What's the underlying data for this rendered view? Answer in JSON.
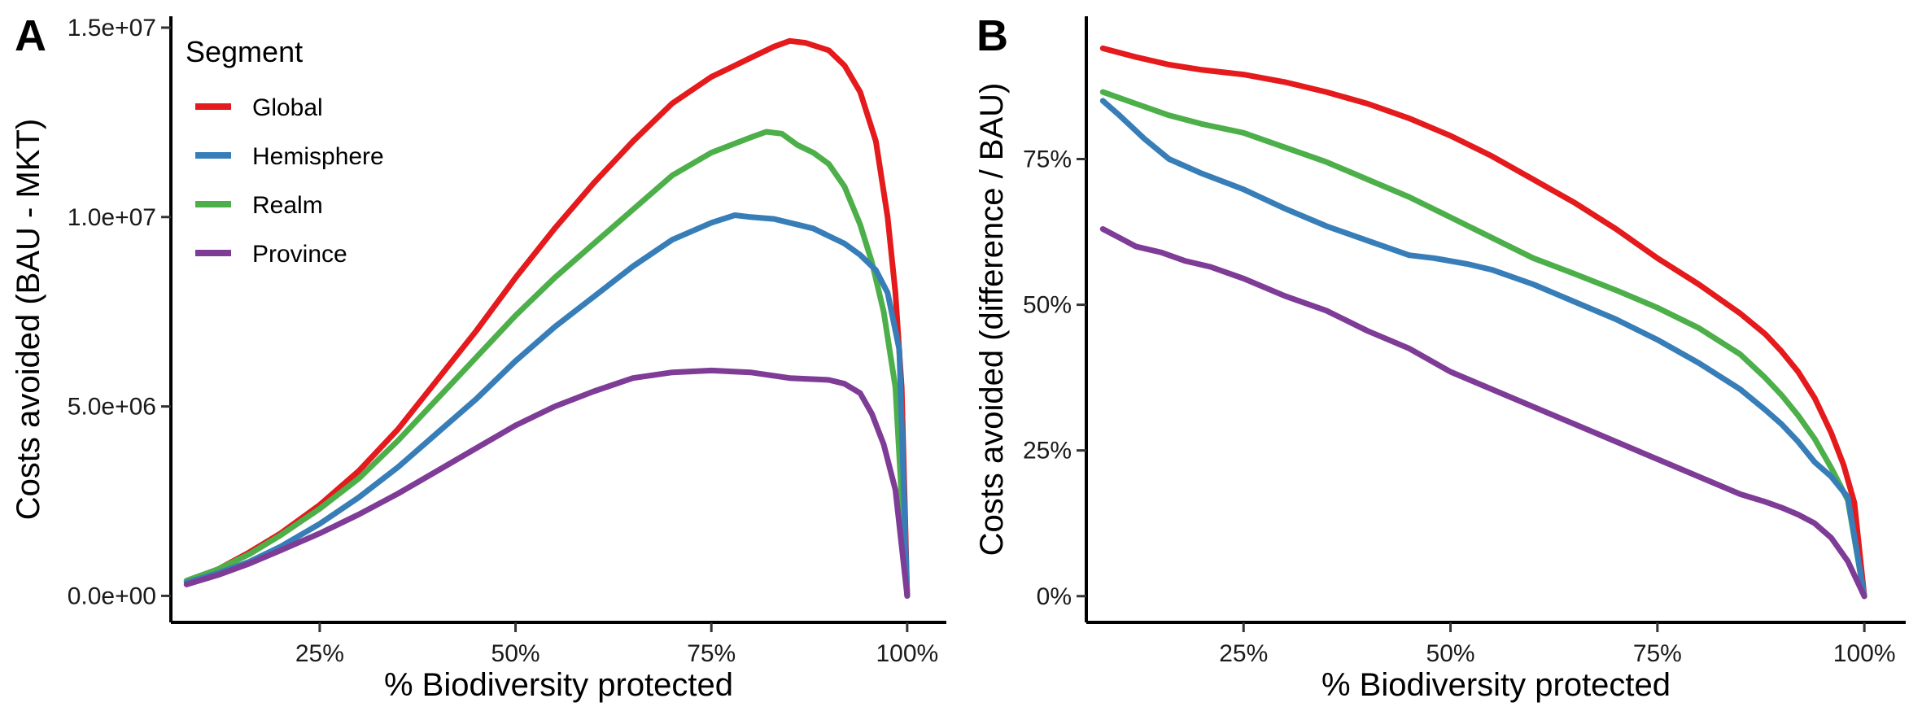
{
  "colors": {
    "Global": "#E41A1C",
    "Hemisphere": "#377EB8",
    "Realm": "#4DAF4A",
    "Province": "#7E3C97"
  },
  "legend": {
    "title": "Segment",
    "entries": [
      "Global",
      "Hemisphere",
      "Realm",
      "Province"
    ]
  },
  "chart_data": [
    {
      "type": "line",
      "panel_tag": "A",
      "xlabel": "% Biodiversity protected",
      "ylabel": "Costs avoided (BAU - MKT)",
      "xlim": [
        6,
        105
      ],
      "ylim": [
        -700000,
        15300000
      ],
      "xticks": [
        25,
        50,
        75,
        100
      ],
      "xtick_labels": [
        "25%",
        "50%",
        "75%",
        "100%"
      ],
      "yticks": [
        0,
        5000000,
        10000000,
        15000000
      ],
      "ytick_labels": [
        "0.0e+00",
        "5.0e+06",
        "1.0e+07",
        "1.5e+07"
      ],
      "grid": false,
      "legend_position": "top-left",
      "series": [
        {
          "name": "Global",
          "points": [
            [
              8,
              400000
            ],
            [
              12,
              700000
            ],
            [
              16,
              1150000
            ],
            [
              20,
              1650000
            ],
            [
              25,
              2400000
            ],
            [
              30,
              3300000
            ],
            [
              35,
              4400000
            ],
            [
              40,
              5700000
            ],
            [
              45,
              7000000
            ],
            [
              50,
              8400000
            ],
            [
              55,
              9700000
            ],
            [
              60,
              10900000
            ],
            [
              65,
              12000000
            ],
            [
              70,
              13000000
            ],
            [
              75,
              13700000
            ],
            [
              80,
              14200000
            ],
            [
              83,
              14500000
            ],
            [
              85,
              14650000
            ],
            [
              87,
              14600000
            ],
            [
              90,
              14400000
            ],
            [
              92,
              14000000
            ],
            [
              94,
              13300000
            ],
            [
              96,
              12000000
            ],
            [
              97.5,
              10000000
            ],
            [
              98.5,
              8000000
            ],
            [
              99.3,
              5500000
            ],
            [
              100,
              0
            ]
          ]
        },
        {
          "name": "Realm",
          "points": [
            [
              8,
              400000
            ],
            [
              12,
              700000
            ],
            [
              16,
              1100000
            ],
            [
              20,
              1600000
            ],
            [
              25,
              2300000
            ],
            [
              30,
              3100000
            ],
            [
              35,
              4100000
            ],
            [
              40,
              5200000
            ],
            [
              45,
              6300000
            ],
            [
              50,
              7400000
            ],
            [
              55,
              8400000
            ],
            [
              60,
              9300000
            ],
            [
              65,
              10200000
            ],
            [
              70,
              11100000
            ],
            [
              75,
              11700000
            ],
            [
              80,
              12100000
            ],
            [
              82,
              12250000
            ],
            [
              84,
              12200000
            ],
            [
              86,
              11900000
            ],
            [
              88,
              11700000
            ],
            [
              90,
              11400000
            ],
            [
              92,
              10800000
            ],
            [
              94,
              9800000
            ],
            [
              95.5,
              8800000
            ],
            [
              97,
              7500000
            ],
            [
              98.5,
              5500000
            ],
            [
              100,
              0
            ]
          ]
        },
        {
          "name": "Hemisphere",
          "points": [
            [
              8,
              350000
            ],
            [
              12,
              600000
            ],
            [
              16,
              900000
            ],
            [
              20,
              1300000
            ],
            [
              25,
              1900000
            ],
            [
              30,
              2600000
            ],
            [
              35,
              3400000
            ],
            [
              40,
              4300000
            ],
            [
              45,
              5200000
            ],
            [
              50,
              6200000
            ],
            [
              55,
              7100000
            ],
            [
              60,
              7900000
            ],
            [
              65,
              8700000
            ],
            [
              70,
              9400000
            ],
            [
              75,
              9850000
            ],
            [
              78,
              10050000
            ],
            [
              80,
              10000000
            ],
            [
              83,
              9950000
            ],
            [
              85,
              9850000
            ],
            [
              88,
              9700000
            ],
            [
              90,
              9500000
            ],
            [
              92,
              9300000
            ],
            [
              94,
              9000000
            ],
            [
              96,
              8600000
            ],
            [
              97.5,
              8000000
            ],
            [
              99,
              6500000
            ],
            [
              100,
              0
            ]
          ]
        },
        {
          "name": "Province",
          "points": [
            [
              8,
              300000
            ],
            [
              12,
              550000
            ],
            [
              16,
              850000
            ],
            [
              20,
              1200000
            ],
            [
              25,
              1650000
            ],
            [
              30,
              2150000
            ],
            [
              35,
              2700000
            ],
            [
              40,
              3300000
            ],
            [
              45,
              3900000
            ],
            [
              50,
              4500000
            ],
            [
              55,
              5000000
            ],
            [
              60,
              5400000
            ],
            [
              65,
              5750000
            ],
            [
              70,
              5900000
            ],
            [
              75,
              5950000
            ],
            [
              80,
              5900000
            ],
            [
              85,
              5750000
            ],
            [
              90,
              5700000
            ],
            [
              92,
              5600000
            ],
            [
              94,
              5350000
            ],
            [
              95.5,
              4800000
            ],
            [
              97,
              4000000
            ],
            [
              98.5,
              2800000
            ],
            [
              100,
              0
            ]
          ]
        }
      ]
    },
    {
      "type": "line",
      "panel_tag": "B",
      "xlabel": "% Biodiversity protected",
      "ylabel": "Costs avoided (difference / BAU)",
      "xlim": [
        6,
        105
      ],
      "ylim": [
        -0.045,
        0.995
      ],
      "xticks": [
        25,
        50,
        75,
        100
      ],
      "xtick_labels": [
        "25%",
        "50%",
        "75%",
        "100%"
      ],
      "yticks": [
        0,
        0.25,
        0.5,
        0.75
      ],
      "ytick_labels": [
        "0%",
        "25%",
        "50%",
        "75%"
      ],
      "grid": false,
      "series": [
        {
          "name": "Global",
          "points": [
            [
              8,
              0.94
            ],
            [
              12,
              0.925
            ],
            [
              16,
              0.912
            ],
            [
              20,
              0.903
            ],
            [
              25,
              0.895
            ],
            [
              30,
              0.882
            ],
            [
              35,
              0.865
            ],
            [
              40,
              0.845
            ],
            [
              45,
              0.82
            ],
            [
              50,
              0.79
            ],
            [
              55,
              0.755
            ],
            [
              60,
              0.715
            ],
            [
              65,
              0.675
            ],
            [
              70,
              0.63
            ],
            [
              75,
              0.58
            ],
            [
              80,
              0.535
            ],
            [
              85,
              0.485
            ],
            [
              88,
              0.45
            ],
            [
              90,
              0.42
            ],
            [
              92,
              0.385
            ],
            [
              94,
              0.34
            ],
            [
              96,
              0.28
            ],
            [
              97.5,
              0.225
            ],
            [
              98.8,
              0.16
            ],
            [
              100,
              0
            ]
          ]
        },
        {
          "name": "Realm",
          "points": [
            [
              8,
              0.865
            ],
            [
              12,
              0.845
            ],
            [
              16,
              0.825
            ],
            [
              20,
              0.81
            ],
            [
              25,
              0.795
            ],
            [
              30,
              0.77
            ],
            [
              35,
              0.745
            ],
            [
              40,
              0.715
            ],
            [
              45,
              0.685
            ],
            [
              50,
              0.65
            ],
            [
              55,
              0.615
            ],
            [
              60,
              0.58
            ],
            [
              65,
              0.553
            ],
            [
              70,
              0.525
            ],
            [
              75,
              0.495
            ],
            [
              80,
              0.46
            ],
            [
              85,
              0.415
            ],
            [
              88,
              0.375
            ],
            [
              90,
              0.345
            ],
            [
              92,
              0.31
            ],
            [
              94,
              0.27
            ],
            [
              96,
              0.22
            ],
            [
              98,
              0.165
            ],
            [
              100,
              0
            ]
          ]
        },
        {
          "name": "Hemisphere",
          "points": [
            [
              8,
              0.85
            ],
            [
              10,
              0.825
            ],
            [
              13,
              0.785
            ],
            [
              16,
              0.75
            ],
            [
              20,
              0.725
            ],
            [
              25,
              0.698
            ],
            [
              30,
              0.665
            ],
            [
              35,
              0.635
            ],
            [
              40,
              0.61
            ],
            [
              45,
              0.585
            ],
            [
              48,
              0.58
            ],
            [
              52,
              0.57
            ],
            [
              55,
              0.56
            ],
            [
              60,
              0.535
            ],
            [
              65,
              0.505
            ],
            [
              70,
              0.475
            ],
            [
              75,
              0.44
            ],
            [
              80,
              0.4
            ],
            [
              85,
              0.355
            ],
            [
              88,
              0.32
            ],
            [
              90,
              0.295
            ],
            [
              92,
              0.265
            ],
            [
              94,
              0.23
            ],
            [
              96,
              0.205
            ],
            [
              98,
              0.17
            ],
            [
              100,
              0
            ]
          ]
        },
        {
          "name": "Province",
          "points": [
            [
              8,
              0.63
            ],
            [
              10,
              0.615
            ],
            [
              12,
              0.6
            ],
            [
              15,
              0.59
            ],
            [
              18,
              0.575
            ],
            [
              21,
              0.565
            ],
            [
              25,
              0.545
            ],
            [
              30,
              0.515
            ],
            [
              35,
              0.49
            ],
            [
              40,
              0.455
            ],
            [
              45,
              0.425
            ],
            [
              50,
              0.385
            ],
            [
              55,
              0.355
            ],
            [
              60,
              0.325
            ],
            [
              65,
              0.295
            ],
            [
              70,
              0.265
            ],
            [
              75,
              0.235
            ],
            [
              80,
              0.205
            ],
            [
              85,
              0.175
            ],
            [
              88,
              0.162
            ],
            [
              90,
              0.152
            ],
            [
              92,
              0.14
            ],
            [
              94,
              0.125
            ],
            [
              96,
              0.1
            ],
            [
              98,
              0.06
            ],
            [
              100,
              0
            ]
          ]
        }
      ]
    }
  ]
}
